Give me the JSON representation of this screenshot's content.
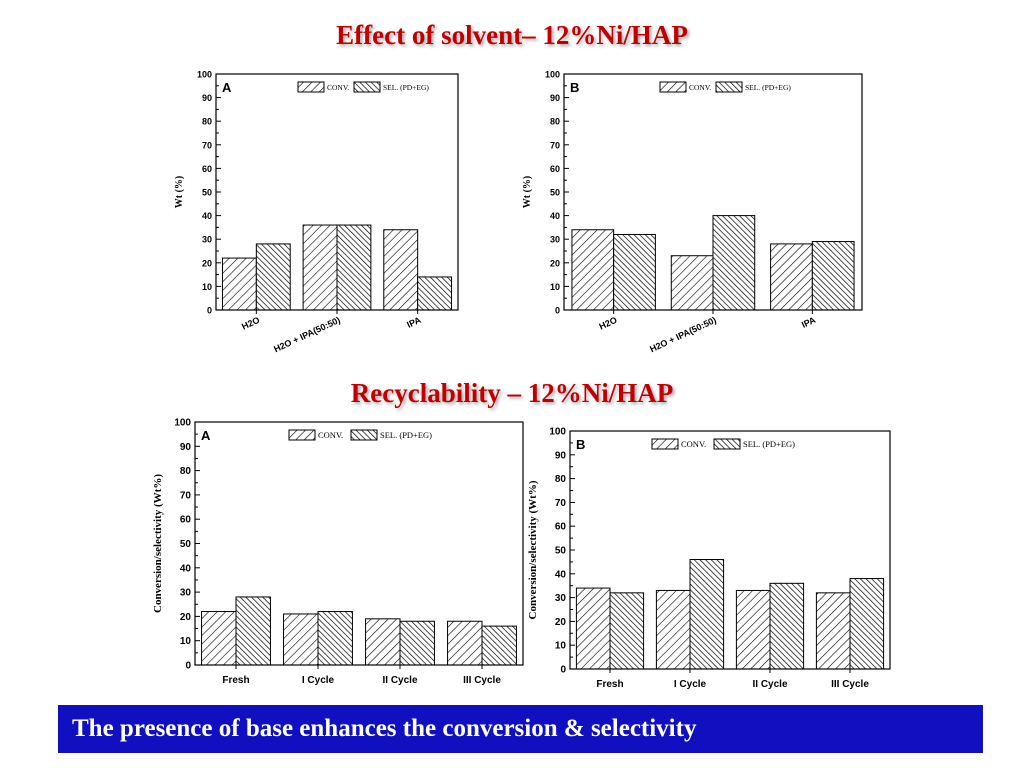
{
  "headings": {
    "solvent": "Effect of solvent– 12%Ni/HAP",
    "recycle": "Recyclability – 12%Ni/HAP"
  },
  "banner": "The presence of base enhances the conversion & selectivity",
  "colors": {
    "heading": "#c00000",
    "banner_bg": "#1010c0",
    "banner_text": "#ffffff"
  },
  "chart_data": [
    {
      "type": "bar",
      "panel": "A",
      "categories": [
        "H2O",
        "H2O + IPA(50:50)",
        "IPA"
      ],
      "series": [
        {
          "name": "CONV.",
          "values": [
            22,
            36,
            34
          ]
        },
        {
          "name": "SEL. (PD+EG)",
          "values": [
            28,
            36,
            14
          ]
        }
      ],
      "ylabel": "Wt (%)",
      "ylim": [
        0,
        100
      ],
      "yticks": [
        0,
        10,
        20,
        30,
        40,
        50,
        60,
        70,
        80,
        90,
        100
      ],
      "legend": "top-center",
      "xtick_rotation": "rotated"
    },
    {
      "type": "bar",
      "panel": "B",
      "categories": [
        "H2O",
        "H2O + IPA(50:50)",
        "IPA"
      ],
      "series": [
        {
          "name": "CONV.",
          "values": [
            34,
            23,
            28
          ]
        },
        {
          "name": "SEL. (PD+EG)",
          "values": [
            32,
            40,
            29
          ]
        }
      ],
      "ylabel": "Wt (%)",
      "ylim": [
        0,
        100
      ],
      "yticks": [
        0,
        10,
        20,
        30,
        40,
        50,
        60,
        70,
        80,
        90,
        100
      ],
      "legend": "top-center",
      "xtick_rotation": "rotated"
    },
    {
      "type": "bar",
      "panel": "A",
      "categories": [
        "Fresh",
        "I Cycle",
        "II Cycle",
        "III Cycle"
      ],
      "series": [
        {
          "name": "CONV.",
          "values": [
            22,
            21,
            19,
            18
          ]
        },
        {
          "name": "SEL. (PD+EG)",
          "values": [
            28,
            22,
            18,
            16
          ]
        }
      ],
      "ylabel": "Conversion/selectivity (Wt%)",
      "ylim": [
        0,
        100
      ],
      "yticks": [
        0,
        10,
        20,
        30,
        40,
        50,
        60,
        70,
        80,
        90,
        100
      ],
      "legend": "top-center",
      "xtick_rotation": "none"
    },
    {
      "type": "bar",
      "panel": "B",
      "categories": [
        "Fresh",
        "I Cycle",
        "II Cycle",
        "III Cycle"
      ],
      "series": [
        {
          "name": "CONV.",
          "values": [
            34,
            33,
            33,
            32
          ]
        },
        {
          "name": "SEL. (PD+EG)",
          "values": [
            32,
            46,
            36,
            38
          ]
        }
      ],
      "ylabel": "Conversion/selectivity (Wt%)",
      "ylim": [
        0,
        100
      ],
      "yticks": [
        0,
        10,
        20,
        30,
        40,
        50,
        60,
        70,
        80,
        90,
        100
      ],
      "legend": "top-center",
      "xtick_rotation": "none"
    }
  ]
}
